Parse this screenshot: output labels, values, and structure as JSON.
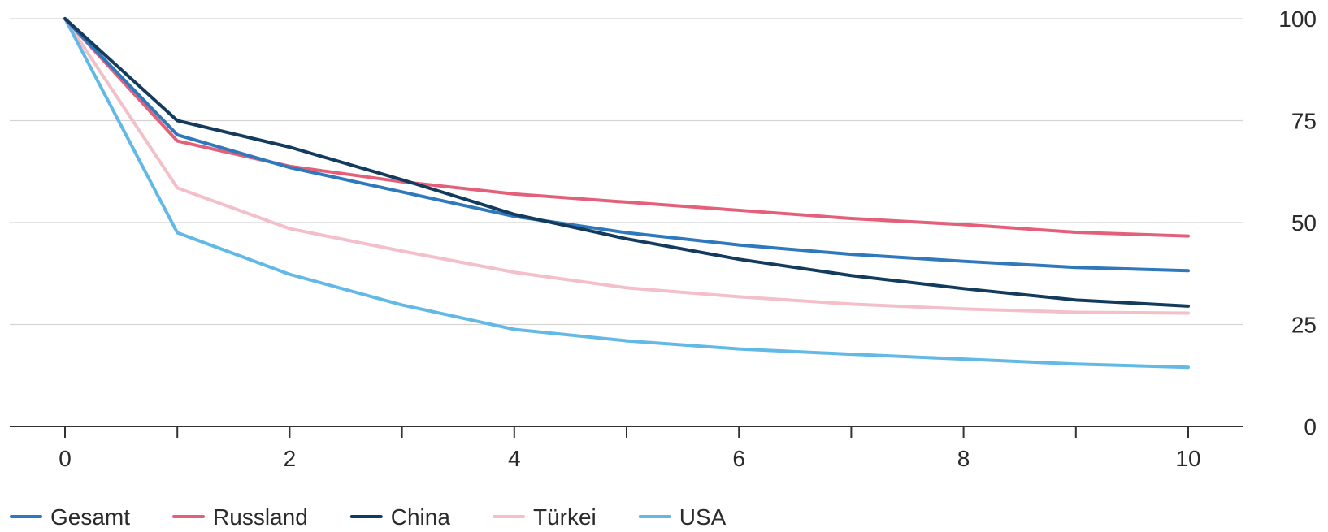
{
  "chart_data": {
    "type": "line",
    "title": "",
    "xlabel": "",
    "ylabel": "",
    "x": [
      0,
      1,
      2,
      3,
      4,
      5,
      6,
      7,
      8,
      9,
      10
    ],
    "xlim": [
      0,
      10
    ],
    "ylim": [
      0,
      100
    ],
    "x_ticks": [
      0,
      2,
      4,
      6,
      8,
      10
    ],
    "y_ticks": [
      0,
      25,
      50,
      75,
      100
    ],
    "grid": "horizontal",
    "y_axis_position": "right",
    "legend_position": "bottom-left",
    "series": [
      {
        "name": "Gesamt",
        "color": "#2e78bb",
        "values": [
          100,
          71.5,
          63.5,
          57.5,
          51.5,
          47.5,
          44.5,
          42.2,
          40.5,
          39.0,
          38.2
        ]
      },
      {
        "name": "Russland",
        "color": "#e4607a",
        "values": [
          100,
          70.0,
          63.8,
          60.0,
          57.0,
          55.0,
          53.0,
          51.0,
          49.5,
          47.6,
          46.7
        ]
      },
      {
        "name": "China",
        "color": "#133b5e",
        "values": [
          100,
          75.0,
          68.5,
          60.5,
          52.0,
          46.0,
          41.0,
          37.0,
          33.8,
          31.0,
          29.5
        ]
      },
      {
        "name": "Türkei",
        "color": "#f3bfc9",
        "values": [
          100,
          58.5,
          48.5,
          43.0,
          37.8,
          34.0,
          31.8,
          30.0,
          28.8,
          28.0,
          27.8
        ]
      },
      {
        "name": "USA",
        "color": "#62b9e5",
        "values": [
          100,
          47.5,
          37.3,
          29.8,
          23.8,
          21.0,
          19.0,
          17.7,
          16.5,
          15.3,
          14.5
        ]
      }
    ],
    "gridline_color": "#d4d4d4",
    "axis_color": "#333333"
  }
}
